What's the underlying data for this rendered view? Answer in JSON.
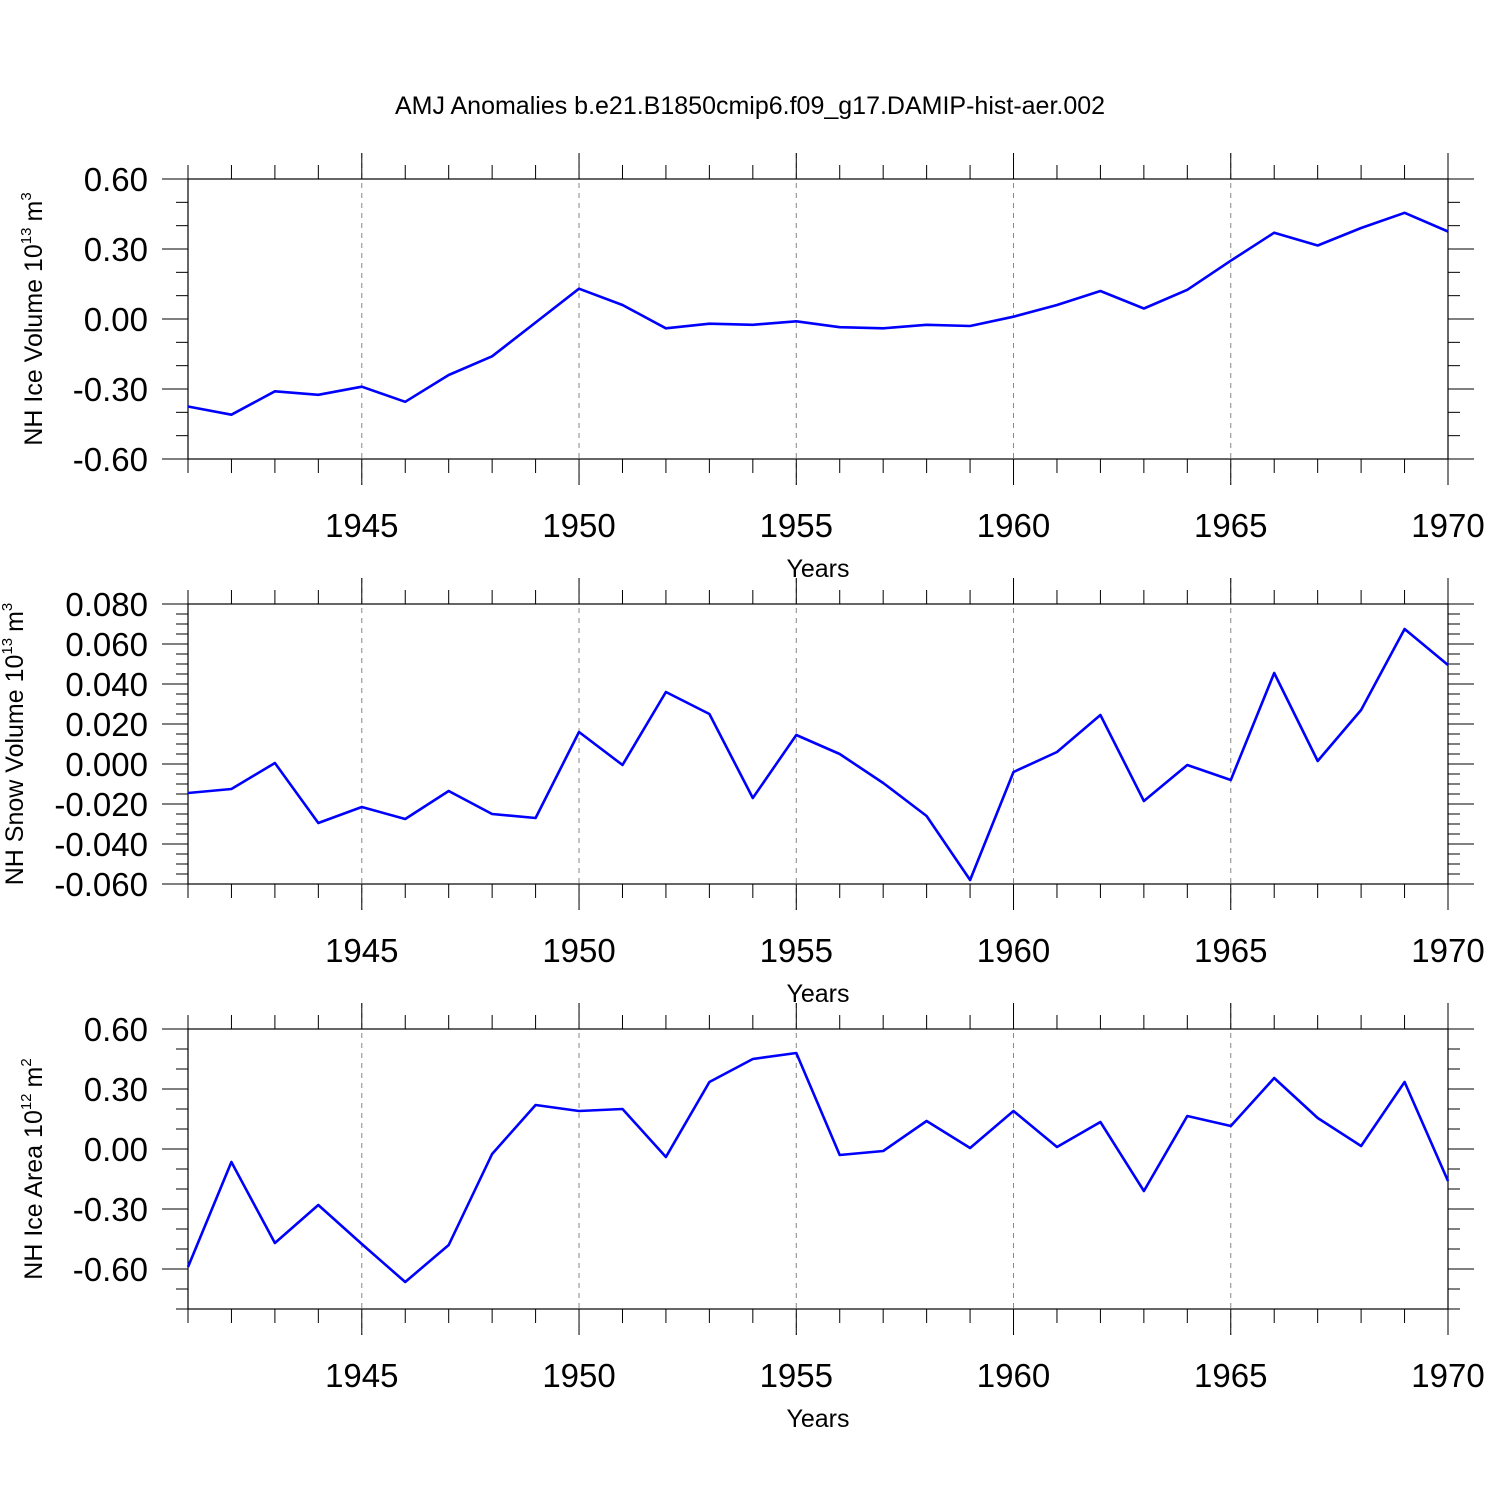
{
  "title": "AMJ Anomalies b.e21.B1850cmip6.f09_g17.DAMIP-hist-aer.002",
  "line_color": "#0000ff",
  "chart_data": [
    {
      "type": "line",
      "ylabel": {
        "main": "NH Ice Volume 10",
        "sup": "13",
        "unit": "m",
        "unit_sup": "3"
      },
      "xlabel": "Years",
      "xlim": [
        1941,
        1970
      ],
      "ylim": [
        -0.6,
        0.6
      ],
      "major_yticks": [
        -0.6,
        -0.3,
        0.0,
        0.3,
        0.6
      ],
      "minor_ystep": 0.1,
      "ytick_labels": [
        "-0.60",
        "-0.30",
        "0.00",
        "0.30",
        "0.60"
      ],
      "xticks": [
        1945,
        1950,
        1955,
        1960,
        1965,
        1970
      ],
      "xtick_labels": [
        "1945",
        "1950",
        "1955",
        "1960",
        "1965",
        "1970"
      ],
      "x": [
        1941,
        1942,
        1943,
        1944,
        1945,
        1946,
        1947,
        1948,
        1949,
        1950,
        1951,
        1952,
        1953,
        1954,
        1955,
        1956,
        1957,
        1958,
        1959,
        1960,
        1961,
        1962,
        1963,
        1964,
        1965,
        1966,
        1967,
        1968,
        1969,
        1970
      ],
      "values": [
        -0.375,
        -0.41,
        -0.31,
        -0.325,
        -0.29,
        -0.355,
        -0.24,
        -0.16,
        -0.015,
        0.13,
        0.06,
        -0.04,
        -0.02,
        -0.025,
        -0.01,
        -0.035,
        -0.04,
        -0.025,
        -0.03,
        0.01,
        0.06,
        0.12,
        0.045,
        0.125,
        0.25,
        0.37,
        0.315,
        0.39,
        0.455,
        0.375
      ]
    },
    {
      "type": "line",
      "ylabel": {
        "main": "NH Snow Volume 10",
        "sup": "13",
        "unit": "m",
        "unit_sup": "3"
      },
      "xlabel": "Years",
      "xlim": [
        1941,
        1970
      ],
      "ylim": [
        -0.06,
        0.08
      ],
      "major_yticks": [
        -0.06,
        -0.04,
        -0.02,
        0.0,
        0.02,
        0.04,
        0.06,
        0.08
      ],
      "minor_ystep": 0.005,
      "ytick_labels": [
        "-0.060",
        "-0.040",
        "-0.020",
        "0.000",
        "0.020",
        "0.040",
        "0.060",
        "0.080"
      ],
      "xticks": [
        1945,
        1950,
        1955,
        1960,
        1965,
        1970
      ],
      "xtick_labels": [
        "1945",
        "1950",
        "1955",
        "1960",
        "1965",
        "1970"
      ],
      "x": [
        1941,
        1942,
        1943,
        1944,
        1945,
        1946,
        1947,
        1948,
        1949,
        1950,
        1951,
        1952,
        1953,
        1954,
        1955,
        1956,
        1957,
        1958,
        1959,
        1960,
        1961,
        1962,
        1963,
        1964,
        1965,
        1966,
        1967,
        1968,
        1969,
        1970
      ],
      "values": [
        -0.0145,
        -0.0125,
        0.0005,
        -0.0295,
        -0.0215,
        -0.0275,
        -0.0135,
        -0.025,
        -0.027,
        0.016,
        -0.0005,
        0.036,
        0.025,
        -0.017,
        0.0145,
        0.005,
        -0.0095,
        -0.026,
        -0.058,
        -0.004,
        0.006,
        0.0245,
        -0.0185,
        -0.0005,
        -0.008,
        0.0455,
        0.0015,
        0.027,
        0.0675,
        0.0495
      ]
    },
    {
      "type": "line",
      "ylabel": {
        "main": "NH Ice Area 10",
        "sup": "12",
        "unit": "m",
        "unit_sup": "2"
      },
      "xlabel": "Years",
      "xlim": [
        1941,
        1970
      ],
      "ylim": [
        -0.8,
        0.6
      ],
      "major_yticks": [
        -0.6,
        -0.3,
        0.0,
        0.3,
        0.6
      ],
      "minor_ystep": 0.1,
      "ytick_labels": [
        "-0.60",
        "-0.30",
        "0.00",
        "0.30",
        "0.60"
      ],
      "xticks": [
        1945,
        1950,
        1955,
        1960,
        1965,
        1970
      ],
      "xtick_labels": [
        "1945",
        "1950",
        "1955",
        "1960",
        "1965",
        "1970"
      ],
      "x": [
        1941,
        1942,
        1943,
        1944,
        1945,
        1946,
        1947,
        1948,
        1949,
        1950,
        1951,
        1952,
        1953,
        1954,
        1955,
        1956,
        1957,
        1958,
        1959,
        1960,
        1961,
        1962,
        1963,
        1964,
        1965,
        1966,
        1967,
        1968,
        1969,
        1970
      ],
      "values": [
        -0.59,
        -0.065,
        -0.47,
        -0.28,
        -0.475,
        -0.665,
        -0.48,
        -0.025,
        0.22,
        0.19,
        0.2,
        -0.04,
        0.335,
        0.45,
        0.48,
        -0.03,
        -0.01,
        0.14,
        0.005,
        0.19,
        0.01,
        0.135,
        -0.21,
        0.165,
        0.115,
        0.355,
        0.155,
        0.015,
        0.335,
        -0.16
      ]
    }
  ]
}
